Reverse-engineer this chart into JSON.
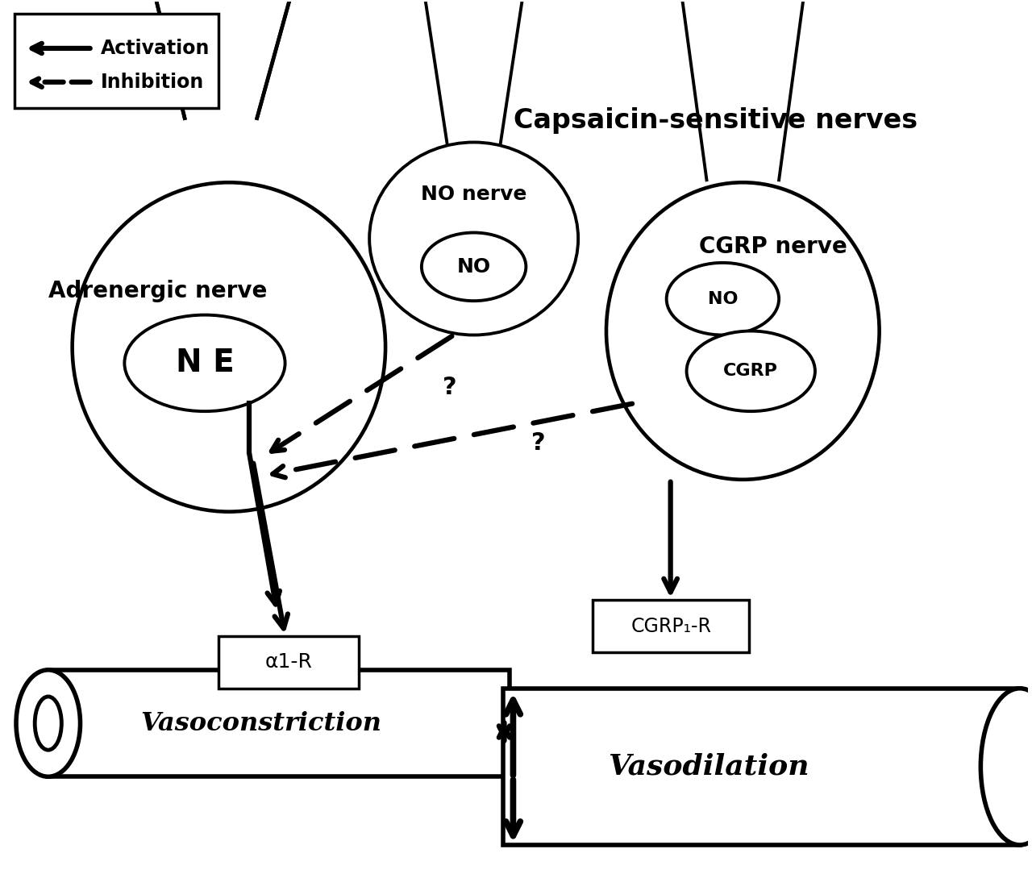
{
  "bg_color": "#ffffff",
  "legend_items": [
    "Activation",
    "Inhibition"
  ],
  "labels": {
    "adrenergic_nerve": "Adrenergic nerve",
    "NE": "N E",
    "NO_nerve": "NO nerve",
    "NO_small": "NO",
    "CGRP_nerve": "CGRP nerve",
    "NO_cgrp": "NO",
    "CGRP": "CGRP",
    "alpha1R": "α1-R",
    "CGRP1R": "CGRP₁-R",
    "vasoconstriction": "Vasoconstriction",
    "vasodilation": "Vasodilation",
    "capsaicin": "Capsaicin-sensitive nerves",
    "q1": "?",
    "q2": "?"
  },
  "lw": 2.5,
  "lw_thick": 3.5,
  "lw_cell": 2.8
}
